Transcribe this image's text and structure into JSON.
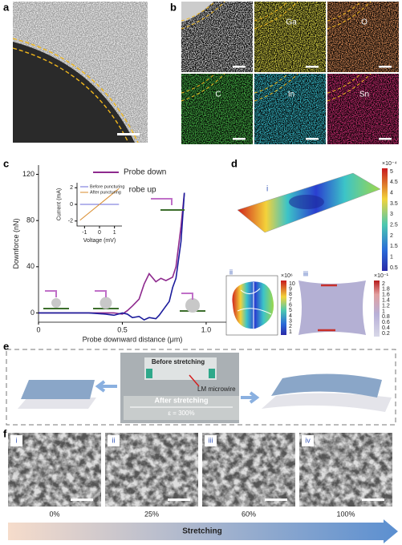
{
  "panel_labels": [
    "a",
    "b",
    "c",
    "d",
    "e",
    "f"
  ],
  "panel_b": {
    "labels": [
      "Ga",
      "O",
      "C",
      "In",
      "Sn"
    ]
  },
  "chart_data": [
    {
      "type": "line",
      "xlabel": "Probe downward distance (μm)",
      "ylabel": "Downforce (nN)",
      "xlim": [
        0,
        1.12
      ],
      "ylim": [
        -8,
        128
      ],
      "xticks": [
        0,
        0.5,
        {
          "value": 1,
          "label": "1.0"
        }
      ],
      "yticks": [
        0,
        40,
        80,
        120
      ],
      "series": [
        {
          "name": "Probe down",
          "color": "#8e2a8e",
          "x": [
            0,
            0.1,
            0.2,
            0.3,
            0.4,
            0.45,
            0.5,
            0.53,
            0.56,
            0.6,
            0.63,
            0.66,
            0.7,
            0.73,
            0.76,
            0.8,
            0.82,
            0.85,
            0.87
          ],
          "values": [
            0,
            0,
            0,
            0,
            0,
            0,
            -1,
            2,
            6,
            12,
            25,
            34,
            27,
            30,
            28,
            31,
            40,
            75,
            104
          ]
        },
        {
          "name": "Probe up",
          "color": "#1c1c9c",
          "x": [
            0.87,
            0.85,
            0.82,
            0.8,
            0.78,
            0.75,
            0.72,
            0.7,
            0.66,
            0.63,
            0.6,
            0.56,
            0.53,
            0.5,
            0.45,
            0.4,
            0.3,
            0.2,
            0.1,
            0
          ],
          "values": [
            104,
            62,
            30,
            22,
            10,
            4,
            -2,
            -5,
            -4,
            -6,
            -3,
            -4,
            -1,
            0,
            -2,
            -1,
            0,
            0,
            0,
            0
          ]
        }
      ]
    },
    {
      "type": "line",
      "xlabel": "Voltage (mV)",
      "ylabel": "Current (mA)",
      "xlim": [
        -1.5,
        1.5
      ],
      "ylim": [
        -2.6,
        2.6
      ],
      "xticks": [
        -1,
        0,
        1
      ],
      "yticks": [
        -2,
        0,
        2
      ],
      "series": [
        {
          "name": "Before puncturing",
          "color": "#6b6bd8",
          "x": [
            -1.3,
            1.3
          ],
          "values": [
            0,
            0
          ]
        },
        {
          "name": "After puncturing",
          "color": "#d98b2b",
          "x": [
            -1.3,
            1.3
          ],
          "values": [
            -1.9,
            1.9
          ]
        }
      ]
    }
  ],
  "panel_d": {
    "labels": [
      "i",
      "ii",
      "iii"
    ],
    "colorbars": [
      {
        "exponent": "×10⁻⁴",
        "ticks": [
          "5",
          "4.5",
          "4",
          "3.5",
          "3",
          "2.5",
          "2",
          "1.5",
          "1",
          "0.5"
        ]
      },
      {
        "exponent": "×10⁶",
        "ticks": [
          "10",
          "9",
          "8",
          "7",
          "6",
          "5",
          "4",
          "3",
          "2",
          "1"
        ]
      },
      {
        "exponent": "×10⁻¹",
        "ticks": [
          "2",
          "1.8",
          "1.6",
          "1.4",
          "1.2",
          "1",
          "0.8",
          "0.6",
          "0.4",
          "0.2"
        ]
      }
    ]
  },
  "panel_e": {
    "before": "Before stretching",
    "wire": "LM microwire",
    "after": "After stretching",
    "strain": "ε = 300%"
  },
  "panel_f": {
    "labels": [
      "i",
      "ii",
      "iii",
      "iv"
    ],
    "strains": [
      "0%",
      "25%",
      "60%",
      "100%"
    ],
    "arrow": "Stretching"
  }
}
